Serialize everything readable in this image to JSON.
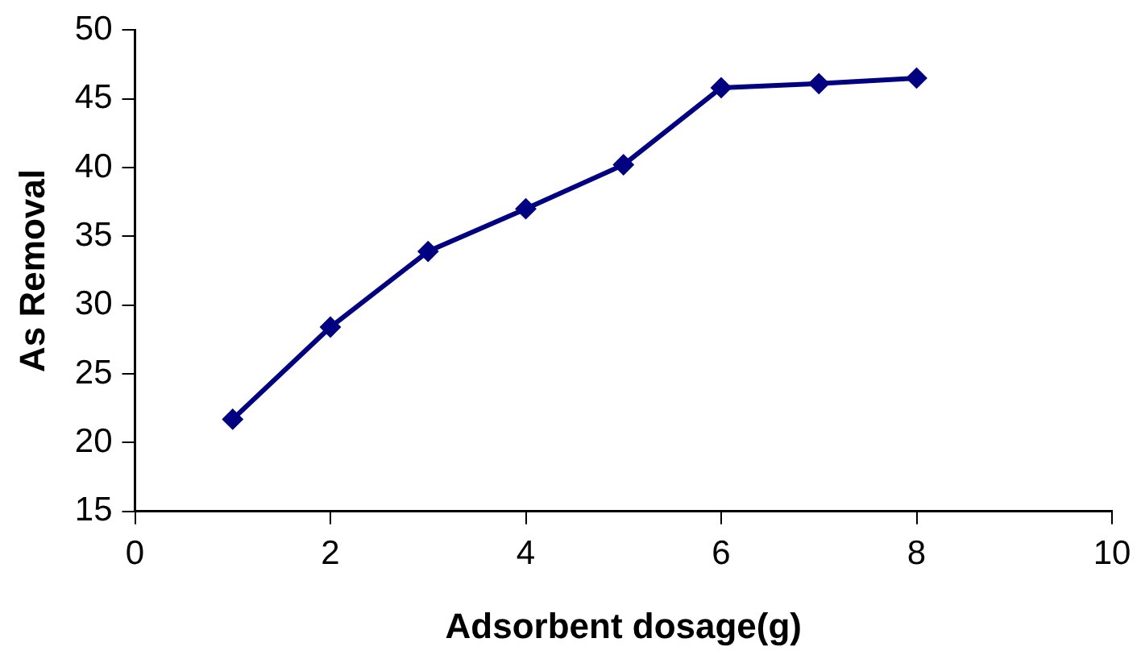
{
  "chart_data": {
    "type": "line",
    "xlabel": "Adsorbent dosage(g)",
    "ylabel": "As Removal",
    "x": [
      1,
      2,
      3,
      4,
      5,
      6,
      7,
      8
    ],
    "series": [
      {
        "color": "#000080",
        "values": [
          21.7,
          28.4,
          33.9,
          37.0,
          40.2,
          45.8,
          46.1,
          46.5
        ]
      }
    ],
    "xlim": [
      0,
      10
    ],
    "xticks": [
      0,
      2,
      4,
      6,
      8,
      10
    ],
    "ylim": [
      15,
      50
    ],
    "yticks": [
      15,
      20,
      25,
      30,
      35,
      40,
      45,
      50
    ],
    "grid": false,
    "legend": false,
    "marker": "diamond",
    "line_style": "solid"
  }
}
